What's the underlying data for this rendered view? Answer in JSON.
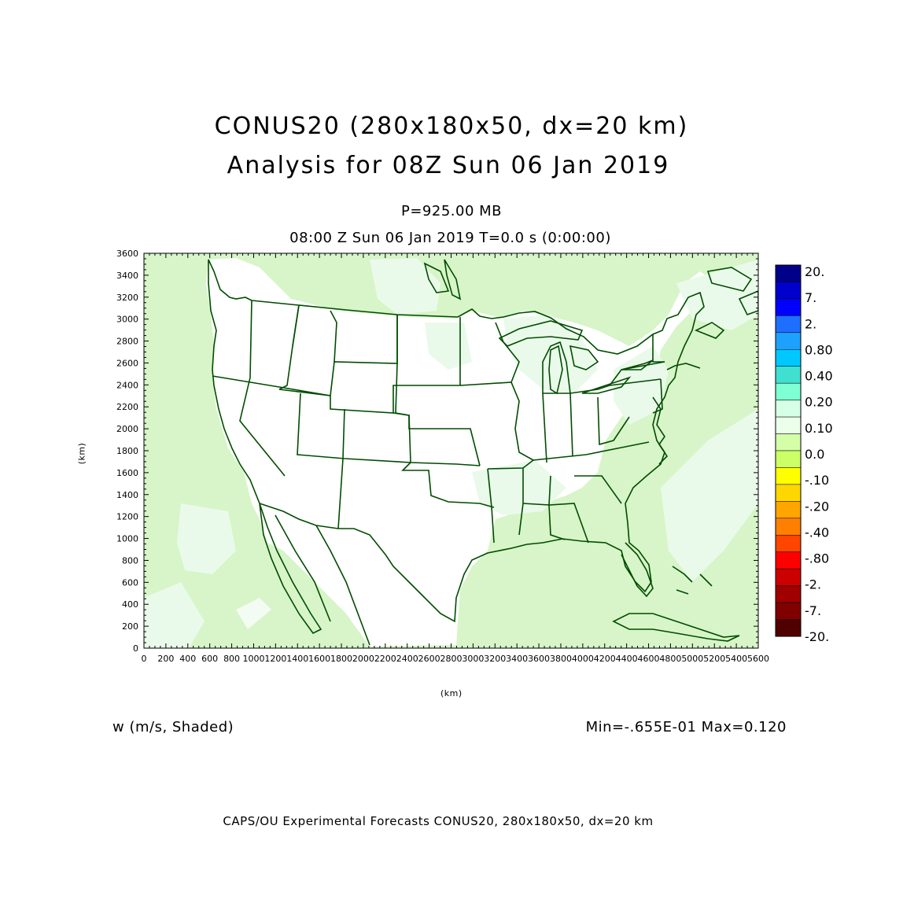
{
  "titles": {
    "line1": "CONUS20 (280x180x50, dx=20 km)",
    "line2": "Analysis for 08Z Sun 06 Jan 2019",
    "level": "P=925.00 MB",
    "time": "08:00 Z Sun 06 Jan 2019    T=0.0 s (0:00:00)"
  },
  "variable_label": "w (m/s, Shaded)",
  "minmax_label": "Min=-.655E-01 Max=0.120",
  "footer": "CAPS/OU Experimental Forecasts  CONUS20, 280x180x50, dx=20 km",
  "axes": {
    "x_label": "(km)",
    "y_label": "(km)",
    "x_ticks": [
      "0",
      "200",
      "400",
      "600",
      "800",
      "1000",
      "1200",
      "1400",
      "1600",
      "1800",
      "2000",
      "2200",
      "2400",
      "2600",
      "2800",
      "3000",
      "3200",
      "3400",
      "3600",
      "3800",
      "4000",
      "4200",
      "4400",
      "4600",
      "4800",
      "5000",
      "5200",
      "5400",
      "5600"
    ],
    "y_ticks": [
      "0",
      "200",
      "400",
      "600",
      "800",
      "1000",
      "1200",
      "1400",
      "1600",
      "1800",
      "2000",
      "2200",
      "2400",
      "2600",
      "2800",
      "3000",
      "3200",
      "3400",
      "3600"
    ],
    "xlim": [
      0,
      5600
    ],
    "ylim": [
      0,
      3600
    ]
  },
  "colorbar": {
    "labels": [
      "20.",
      "7.",
      "2.",
      "0.80",
      "0.40",
      "0.20",
      "0.10",
      "0.0",
      "-.10",
      "-.20",
      "-.40",
      "-.80",
      "-2.",
      "-7.",
      "-20."
    ],
    "colors": [
      "#00008b",
      "#0000cd",
      "#0000ff",
      "#1e6eff",
      "#1ea0ff",
      "#00c8ff",
      "#40e0d0",
      "#7fffd4",
      "#d7ffe6",
      "#ebffeb",
      "#d4ffa8",
      "#ccff66",
      "#ffff00",
      "#ffd700",
      "#ffa500",
      "#ff7f00",
      "#ff4500",
      "#ff0000",
      "#cd0000",
      "#a00000",
      "#800000",
      "#500000"
    ]
  },
  "map_colors": {
    "shade_light": "#eafaea",
    "shade_med": "#d7f5c8",
    "outline": "#004c00"
  }
}
